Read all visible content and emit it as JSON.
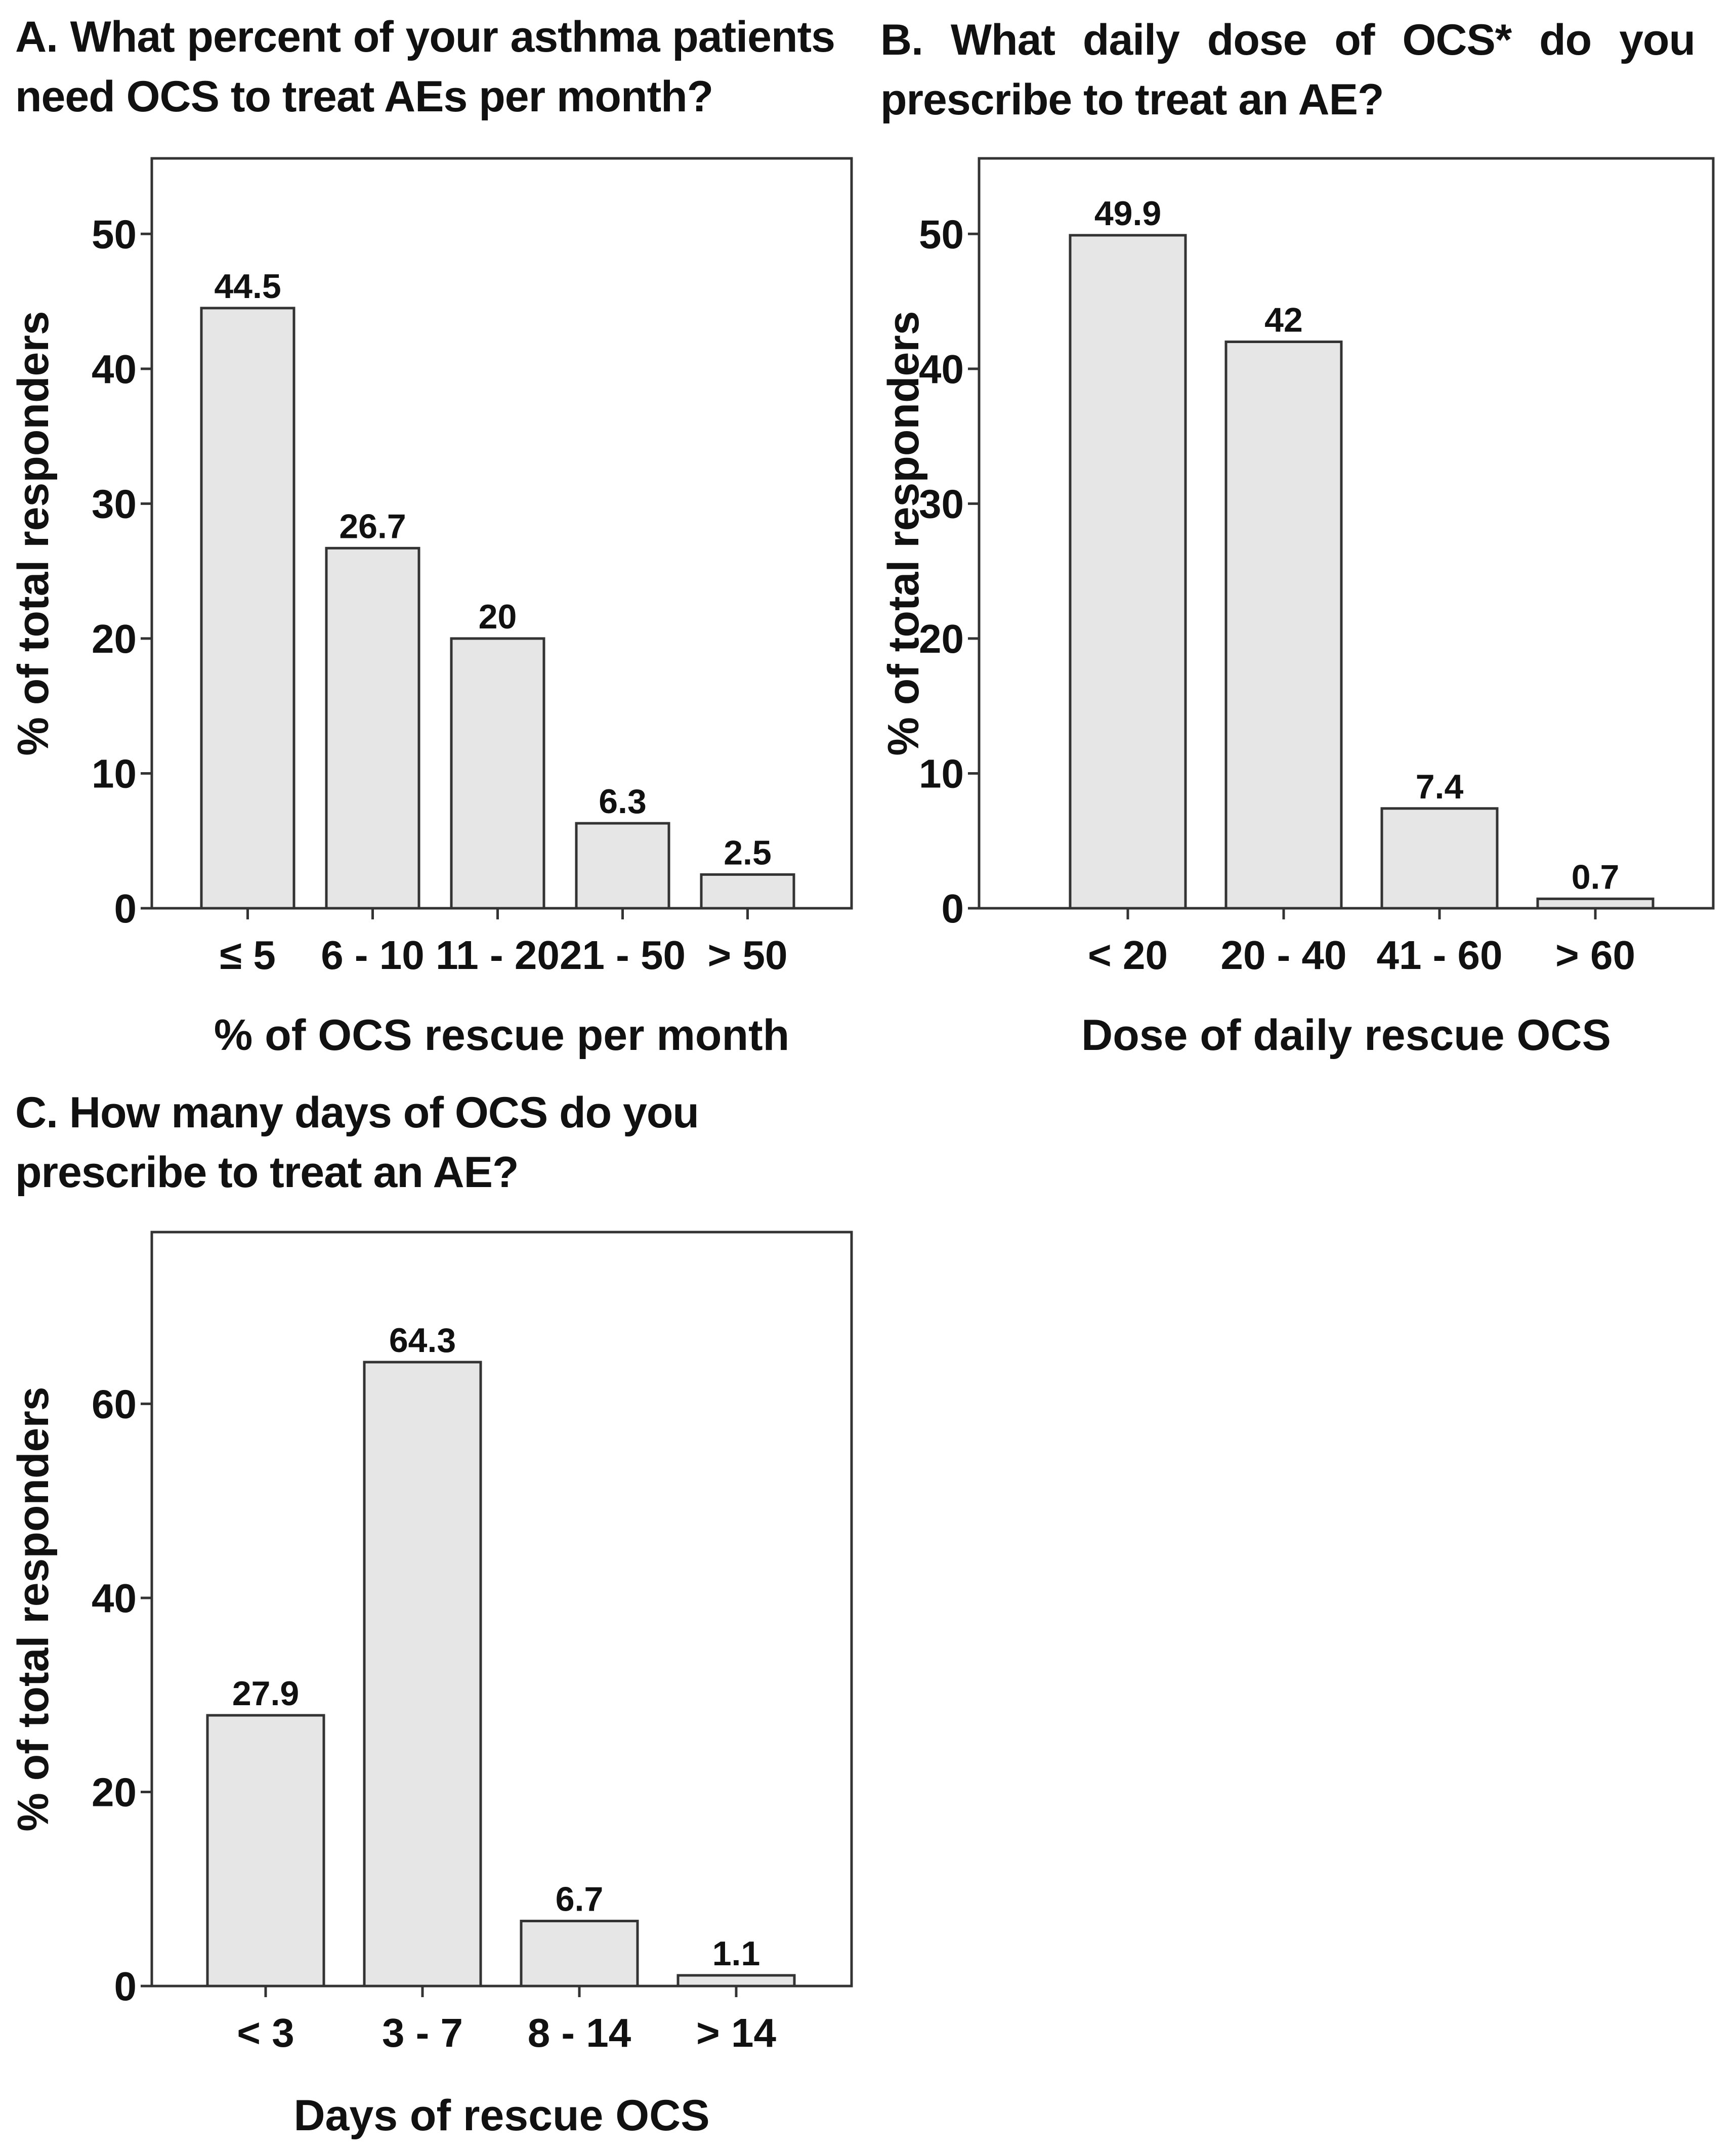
{
  "chart_data": [
    {
      "type": "bar",
      "title": "A. What percent of your asthma patients need OCS to treat AEs per month?",
      "categories": [
        "≤ 5",
        "6 - 10",
        "11 - 20",
        "21 - 50",
        "> 50"
      ],
      "values": [
        44.5,
        26.7,
        20,
        6.3,
        2.5
      ],
      "value_labels": [
        "44.5",
        "26.7",
        "20",
        "6.3",
        "2.5"
      ],
      "xlabel": "% of OCS rescue per month",
      "ylabel": "% of total responders",
      "ylim": [
        0,
        55.6
      ],
      "yticks": [
        "0",
        "10",
        "20",
        "30",
        "40",
        "50"
      ],
      "bar_color": "#e6e6e6"
    },
    {
      "type": "bar",
      "title": "B. What daily dose of OCS* do you prescribe to treat an AE?",
      "categories": [
        "< 20",
        "20 - 40",
        "41 - 60",
        "> 60"
      ],
      "values": [
        49.9,
        42,
        7.4,
        0.7
      ],
      "value_labels": [
        "49.9",
        "42",
        "7.4",
        "0.7"
      ],
      "xlabel": "Dose of daily rescue OCS",
      "ylabel": "% of total responders",
      "ylim": [
        0,
        55.6
      ],
      "yticks": [
        "0",
        "10",
        "20",
        "30",
        "40",
        "50"
      ],
      "bar_color": "#e6e6e6"
    },
    {
      "type": "bar",
      "title": "C. How many days of OCS do you prescribe to treat an AE?",
      "categories": [
        "< 3",
        "3 - 7",
        "8 - 14",
        "> 14"
      ],
      "values": [
        27.9,
        64.3,
        6.7,
        1.1
      ],
      "value_labels": [
        "27.9",
        "64.3",
        "6.7",
        "1.1"
      ],
      "xlabel": "Days of rescue OCS",
      "ylabel": "% of total responders",
      "ylim": [
        0,
        77.7
      ],
      "yticks": [
        "0",
        "20",
        "40",
        "60"
      ],
      "bar_color": "#e6e6e6"
    }
  ]
}
